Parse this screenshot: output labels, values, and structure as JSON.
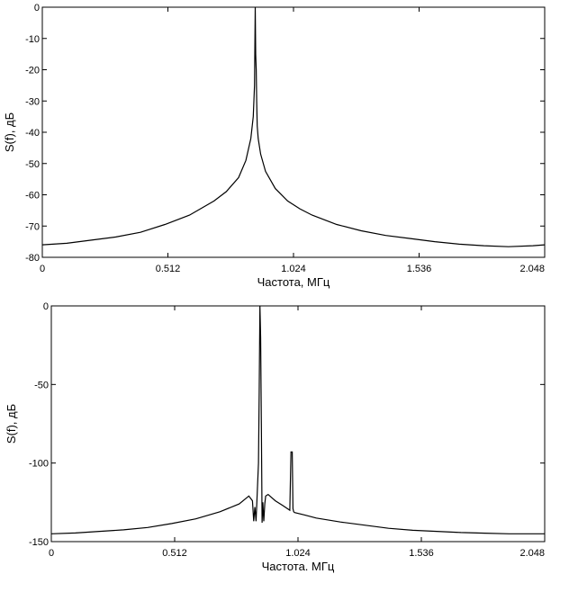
{
  "chart_data": [
    {
      "type": "line",
      "title": "",
      "xlabel": "Частота, МГц",
      "ylabel": "S(f), дБ",
      "xlim": [
        0,
        2.048
      ],
      "ylim": [
        -80,
        0
      ],
      "xticks": [
        "0",
        "0.512",
        "1.024",
        "1.536",
        "2.048"
      ],
      "xtick_values": [
        0,
        0.512,
        1.024,
        1.536,
        2.048
      ],
      "yticks": [
        "0",
        "-10",
        "-20",
        "-30",
        "-40",
        "-50",
        "-60",
        "-70",
        "-80"
      ],
      "ytick_values": [
        0,
        -10,
        -20,
        -30,
        -40,
        -50,
        -60,
        -70,
        -80
      ],
      "grid": false,
      "series": [
        {
          "name": "spectrum",
          "x": [
            0,
            0.1,
            0.2,
            0.3,
            0.4,
            0.5,
            0.6,
            0.7,
            0.75,
            0.8,
            0.83,
            0.85,
            0.86,
            0.865,
            0.868,
            0.87,
            0.872,
            0.874,
            0.876,
            0.88,
            0.89,
            0.91,
            0.95,
            1.0,
            1.05,
            1.1,
            1.2,
            1.3,
            1.4,
            1.5,
            1.6,
            1.7,
            1.8,
            1.9,
            2.0,
            2.048
          ],
          "y": [
            -76,
            -75.5,
            -74.5,
            -73.5,
            -72,
            -69.5,
            -66.5,
            -62,
            -59,
            -54.5,
            -49,
            -42,
            -35,
            -25,
            0,
            -15,
            -20,
            -30,
            -38,
            -42,
            -47,
            -52.5,
            -58,
            -62,
            -64.5,
            -66.5,
            -69.5,
            -71.5,
            -73,
            -74,
            -75,
            -75.8,
            -76.3,
            -76.6,
            -76.3,
            -76
          ]
        }
      ]
    },
    {
      "type": "line",
      "title": "",
      "xlabel": "Частота. МГц",
      "ylabel": "S(f), дБ",
      "xlim": [
        0,
        2.048
      ],
      "ylim": [
        -150,
        0
      ],
      "xticks": [
        "0",
        "0.512",
        "1.024",
        "1.536",
        "2.048"
      ],
      "xtick_values": [
        0,
        0.512,
        1.024,
        1.536,
        2.048
      ],
      "yticks": [
        "0",
        "-50",
        "-100",
        "-150"
      ],
      "ytick_values": [
        0,
        -50,
        -100,
        -150
      ],
      "grid": false,
      "series": [
        {
          "name": "spectrum",
          "x": [
            0,
            0.1,
            0.2,
            0.3,
            0.4,
            0.5,
            0.6,
            0.7,
            0.78,
            0.82,
            0.835,
            0.84,
            0.845,
            0.85,
            0.855,
            0.86,
            0.863,
            0.866,
            0.869,
            0.872,
            0.875,
            0.878,
            0.882,
            0.886,
            0.89,
            0.9,
            0.93,
            0.96,
            0.99,
            0.995,
            1.0,
            1.003,
            1.006,
            1.01,
            1.05,
            1.1,
            1.2,
            1.3,
            1.4,
            1.5,
            1.6,
            1.7,
            1.8,
            1.9,
            2.0,
            2.048
          ],
          "y": [
            -145,
            -144.5,
            -143.5,
            -142.5,
            -141,
            -138.5,
            -135.5,
            -131,
            -126,
            -121,
            -124,
            -137,
            -128,
            -137,
            -118,
            -100,
            -55,
            0,
            -20,
            -75,
            -138,
            -125,
            -137,
            -126,
            -121,
            -120,
            -124,
            -127,
            -130,
            -93,
            -93,
            -129,
            -131,
            -131.5,
            -133,
            -135,
            -137.5,
            -139.5,
            -141.5,
            -142.8,
            -143.5,
            -144.2,
            -144.6,
            -145,
            -145,
            -145
          ]
        }
      ]
    }
  ]
}
